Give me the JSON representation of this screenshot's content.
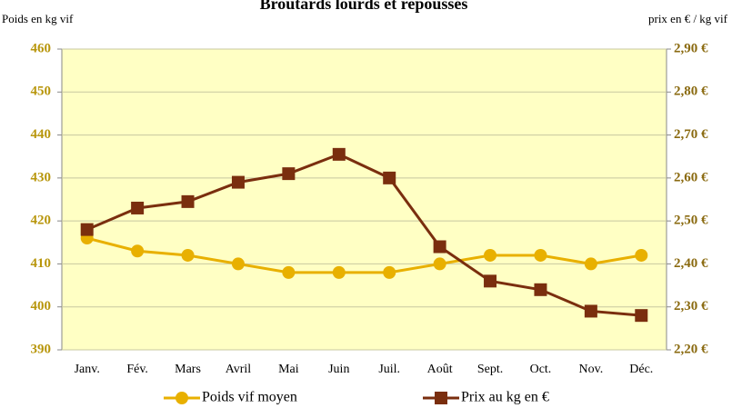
{
  "chart_data": {
    "type": "line",
    "title": "Broutards lourds et repoussés",
    "y_label": "Poids en kg vif",
    "y2_label": "prix en € / kg vif",
    "categories": [
      "Janv.",
      "Fév.",
      "Mars",
      "Avril",
      "Mai",
      "Juin",
      "Juil.",
      "Août",
      "Sept.",
      "Oct.",
      "Nov.",
      "Déc."
    ],
    "series": [
      {
        "name": "Poids vif moyen",
        "color": "#e8b000",
        "marker": "circle",
        "axis": "y",
        "values": [
          416,
          413,
          412,
          410,
          408,
          408,
          408,
          410,
          412,
          412,
          410,
          412
        ]
      },
      {
        "name": "Prix au kg en €",
        "color": "#7a2e0e",
        "marker": "square",
        "axis": "y2",
        "values": [
          2.48,
          2.53,
          2.545,
          2.59,
          2.61,
          2.655,
          2.6,
          2.44,
          2.36,
          2.34,
          2.29,
          2.28
        ]
      }
    ],
    "ylim": [
      390,
      460
    ],
    "yticks": [
      390,
      400,
      410,
      420,
      430,
      440,
      450,
      460
    ],
    "y2lim": [
      2.2,
      2.9
    ],
    "y2ticks": [
      {
        "value": 2.2,
        "label": "2,20 €"
      },
      {
        "value": 2.3,
        "label": "2,30 €"
      },
      {
        "value": 2.4,
        "label": "2,40 €"
      },
      {
        "value": 2.5,
        "label": "2,50 €"
      },
      {
        "value": 2.6,
        "label": "2,60 €"
      },
      {
        "value": 2.7,
        "label": "2,70 €"
      },
      {
        "value": 2.8,
        "label": "2,80 €"
      },
      {
        "value": 2.9,
        "label": "2,90 €"
      }
    ],
    "grid": true,
    "plot_background": "#ffffc4",
    "legend": "bottom"
  }
}
